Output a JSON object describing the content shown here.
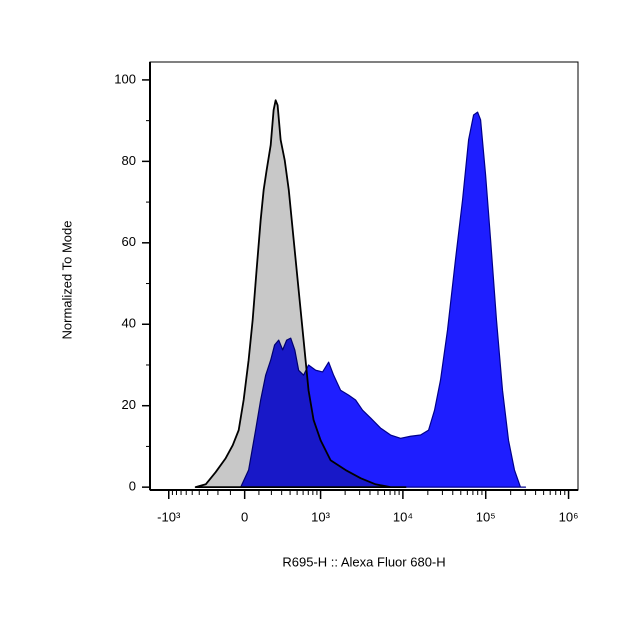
{
  "chart_data": {
    "type": "histogram",
    "xlabel": "R695-H :: Alexa Fluor 680-H",
    "ylabel": "Normalized To Mode",
    "xscale": "biexponential",
    "xlim": [
      -1700,
      1300000
    ],
    "xticks": [
      {
        "value": -1000,
        "label": "-10³"
      },
      0,
      {
        "value": 1000,
        "label": "10³"
      },
      {
        "value": 10000,
        "label": "10⁴"
      },
      {
        "value": 100000,
        "label": "10⁵"
      },
      {
        "value": 1000000,
        "label": "10⁶"
      }
    ],
    "ylim": [
      -0.7,
      104.4
    ],
    "yticks": [
      0,
      20,
      40,
      60,
      80,
      100
    ],
    "series": [
      {
        "color": "#1e1eff",
        "edge_color": "#00008c",
        "x": [
          -27,
          27,
          76,
          113,
          152,
          194,
          229,
          269,
          311,
          357,
          408,
          465,
          524,
          609,
          705,
          869,
          1060,
          1257,
          1447,
          1761,
          2207,
          2679,
          3257,
          4069,
          5375,
          7100,
          9373,
          12374,
          16334,
          20418,
          24108,
          28462,
          34588,
          43099,
          52496,
          62140,
          71365,
          79753,
          86690,
          99605,
          114513,
          134882,
          159408,
          188436,
          222384,
          262728,
          302088
        ],
        "values": [
          0,
          4.2,
          14,
          21.4,
          27.5,
          31.2,
          34.9,
          36.1,
          33.7,
          36.1,
          36.6,
          33.7,
          28.7,
          27.5,
          30,
          28.7,
          28.3,
          30.7,
          27.5,
          23.8,
          22.6,
          21.4,
          18.9,
          17,
          14.5,
          12.8,
          12,
          12.5,
          12.8,
          14,
          18.9,
          26.3,
          38.6,
          55.8,
          70.5,
          85.3,
          91.4,
          92.1,
          90.2,
          76.7,
          60.7,
          41,
          23.8,
          11.5,
          4.2,
          0,
          0
        ]
      },
      {
        "color": "#c8c8c8",
        "edge_color": "#000000",
        "x": [
          -449,
          -321,
          -220,
          -136,
          -83,
          -41,
          -7,
          27,
          55,
          83,
          113,
          136,
          160,
          194,
          220,
          239,
          258,
          289,
          334,
          383,
          449,
          524,
          609,
          705,
          817,
          1001,
          1329,
          2027,
          3080,
          4674,
          7100,
          10800
        ],
        "values": [
          0,
          0.7,
          3.7,
          7.1,
          10.3,
          14,
          21.4,
          31.2,
          41,
          53.3,
          65.6,
          73,
          77.9,
          84,
          92.6,
          95,
          93.8,
          85.3,
          80.3,
          73,
          60.7,
          48.4,
          36.1,
          23.8,
          16.5,
          11.5,
          6.6,
          4.2,
          2.2,
          0.7,
          0,
          0
        ]
      }
    ]
  }
}
